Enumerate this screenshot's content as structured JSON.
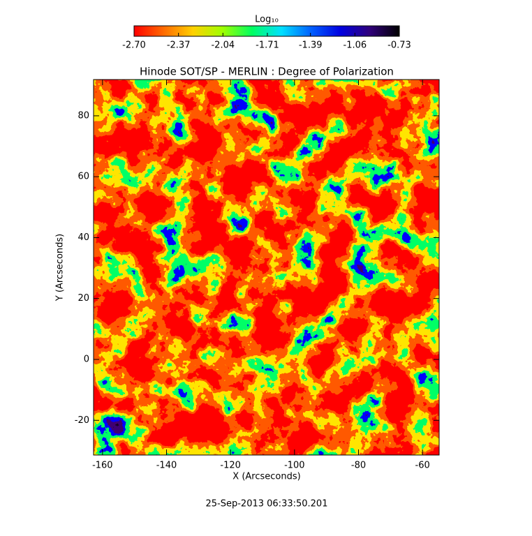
{
  "chart_data": {
    "type": "heatmap",
    "title": "Hinode SOT/SP - MERLIN : Degree of Polarization",
    "xlabel": "X (Arcseconds)",
    "ylabel": "Y (Arcseconds)",
    "date": "25-Sep-2013 06:33:50.201",
    "xlim": [
      -162.8,
      -54.8
    ],
    "ylim": [
      -31.4,
      91.9
    ],
    "xticks": [
      -160,
      -140,
      -120,
      -100,
      -80,
      -60
    ],
    "yticks": [
      -20,
      0,
      20,
      40,
      60,
      80
    ],
    "colorbar": {
      "label": "Log₁₀",
      "lim": [
        -2.7,
        -0.73
      ],
      "ticks": [
        {
          "value": -2.7,
          "label": "-2.70"
        },
        -2.37,
        -2.04,
        -1.71,
        -1.39,
        -1.06,
        -0.73
      ],
      "colors": [
        "#ff0000",
        "#ff6a00",
        "#ffd000",
        "#a0ff00",
        "#00ff60",
        "#00e0ff",
        "#0060ff",
        "#0000e0",
        "#30007a",
        "#000000"
      ]
    }
  }
}
